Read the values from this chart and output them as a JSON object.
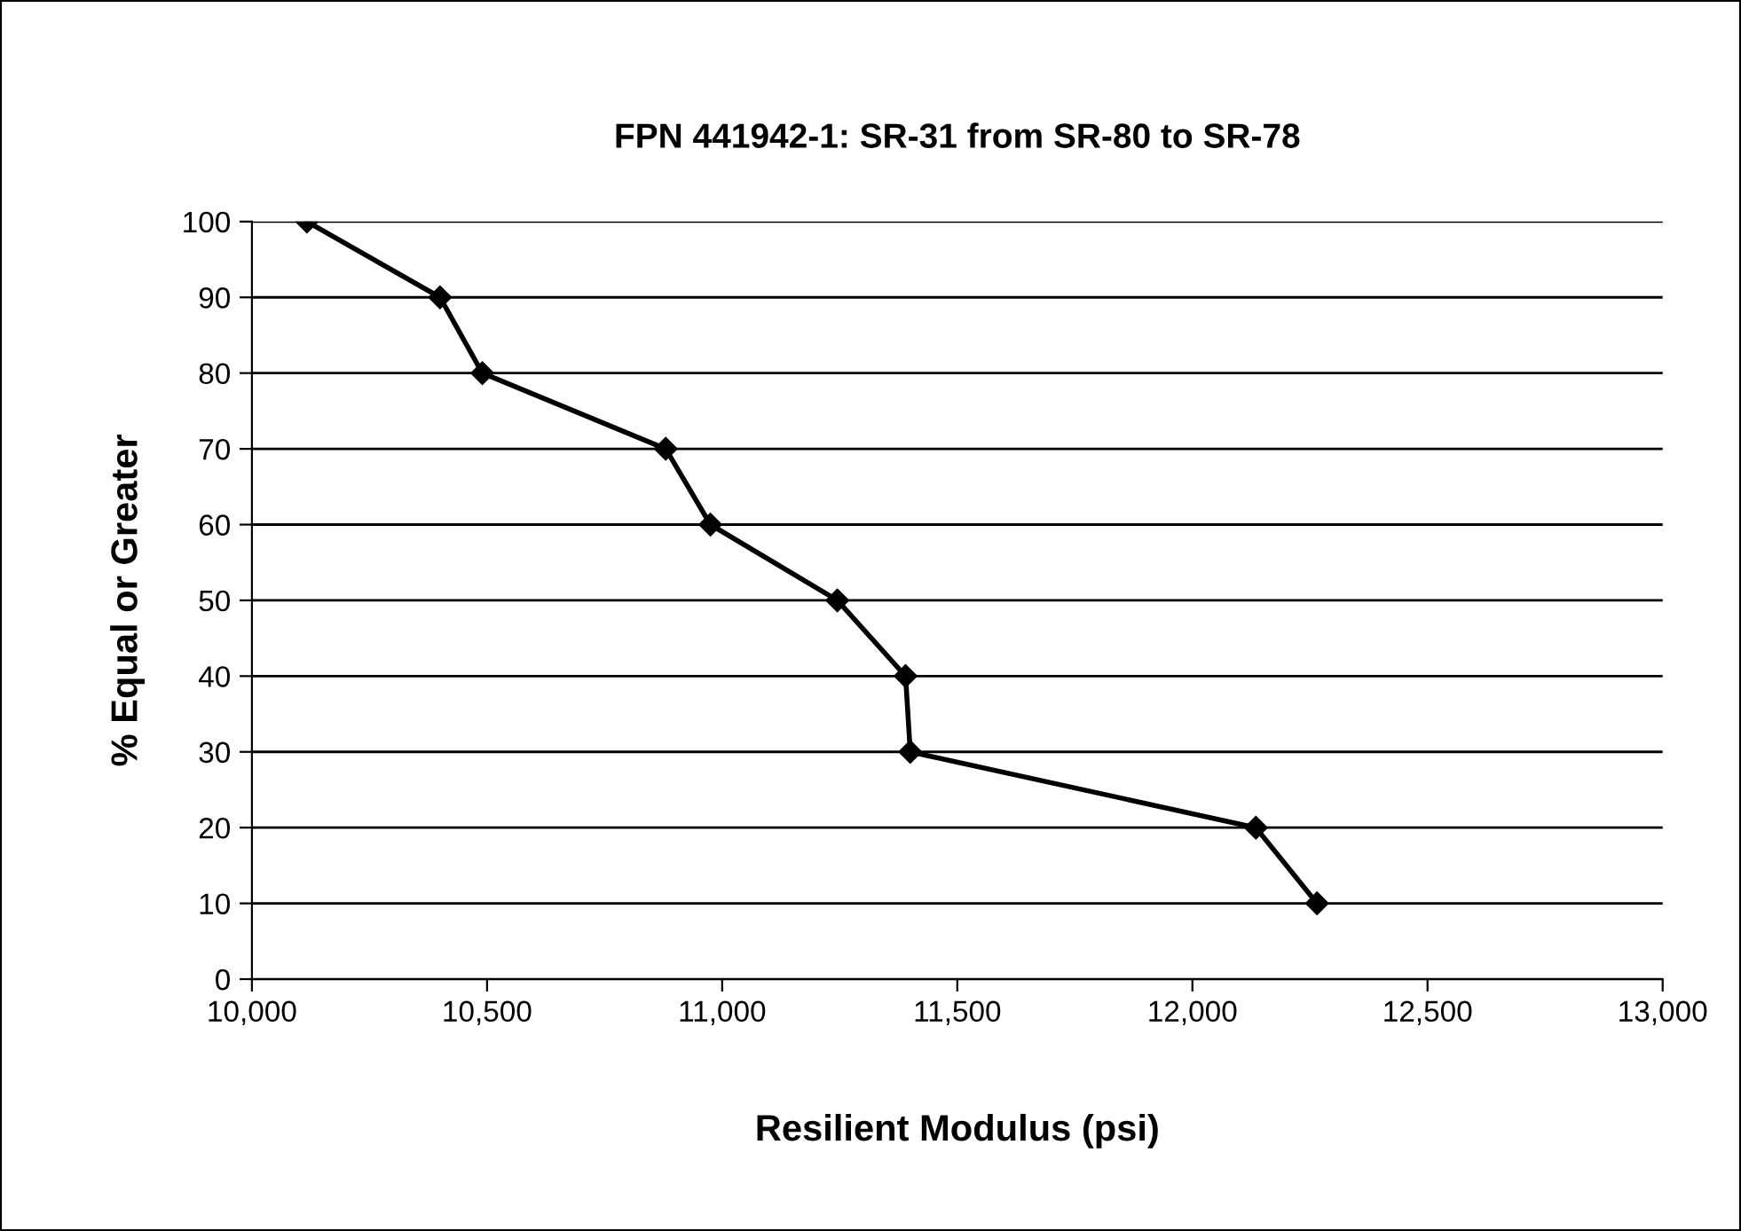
{
  "chart_data": {
    "type": "line",
    "title": "FPN 441942-1: SR-31 from SR-80 to SR-78",
    "xlabel": "Resilient Modulus (psi)",
    "ylabel": "% Equal or Greater",
    "series": [
      {
        "color": "#000000",
        "x": [
          10117,
          10400,
          10490,
          10880,
          10975,
          11245,
          11390,
          11400,
          12135,
          12265
        ],
        "values": [
          100,
          90,
          80,
          70,
          60,
          50,
          40,
          30,
          20,
          10
        ]
      }
    ],
    "xlim": [
      10000,
      13000
    ],
    "xticks": [
      {
        "value": 10000,
        "label": "10,000"
      },
      {
        "value": 10500,
        "label": "10,500"
      },
      {
        "value": 11000,
        "label": "11,000"
      },
      {
        "value": 11500,
        "label": "11,500"
      },
      {
        "value": 12000,
        "label": "12,000"
      },
      {
        "value": 12500,
        "label": "12,500"
      },
      {
        "value": 13000,
        "label": "13,000"
      }
    ],
    "ylim": [
      0,
      100
    ],
    "yticks": [
      0,
      10,
      20,
      30,
      40,
      50,
      60,
      70,
      80,
      90,
      100
    ],
    "grid": "y",
    "marker": "diamond",
    "line_style": "solid",
    "legend": false
  }
}
